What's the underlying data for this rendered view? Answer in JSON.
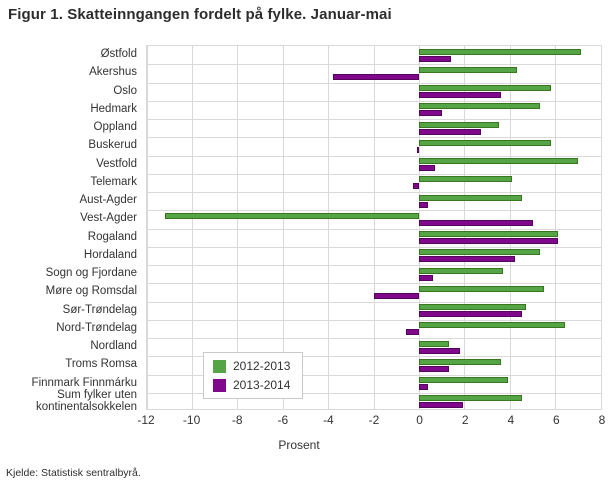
{
  "title": "Figur 1. Skatteinngangen fordelt på fylke. Januar-mai",
  "source": "Kjelde: Statistisk sentralbyrå.",
  "chart_data": {
    "type": "bar",
    "orientation": "horizontal",
    "title": "Figur 1. Skatteinngangen fordelt på fylke. Januar-mai",
    "xlabel": "Prosent",
    "xlim": [
      -12,
      8
    ],
    "xticks": [
      -12,
      -10,
      -8,
      -6,
      -4,
      -2,
      0,
      2,
      4,
      6,
      8
    ],
    "grid": true,
    "legend_position": "inside-bottom-left",
    "categories": [
      "Østfold",
      "Akershus",
      "Oslo",
      "Hedmark",
      "Oppland",
      "Buskerud",
      "Vestfold",
      "Telemark",
      "Aust-Agder",
      "Vest-Agder",
      "Rogaland",
      "Hordaland",
      "Sogn og Fjordane",
      "Møre og Romsdal",
      "Sør-Trøndelag",
      "Nord-Trøndelag",
      "Nordland",
      "Troms Romsa",
      "Finnmark Finnmárku",
      "Sum fylker uten kontinentalsokkelen"
    ],
    "series": [
      {
        "name": "2012-2013",
        "color": "#55a546",
        "border_color": "#38771f",
        "values": [
          7.1,
          4.3,
          5.8,
          5.3,
          3.5,
          5.8,
          7.0,
          4.1,
          4.5,
          -11.2,
          6.1,
          5.3,
          3.7,
          5.5,
          4.7,
          6.4,
          1.3,
          3.6,
          3.9,
          4.5
        ]
      },
      {
        "name": "2013-2014",
        "color": "#80088a",
        "border_color": "#54055c",
        "values": [
          1.4,
          -3.8,
          3.6,
          1.0,
          2.7,
          -0.1,
          0.7,
          -0.3,
          0.4,
          5.0,
          6.1,
          4.2,
          0.6,
          -2.0,
          4.5,
          -0.6,
          1.8,
          1.3,
          0.4,
          1.9
        ]
      }
    ]
  }
}
